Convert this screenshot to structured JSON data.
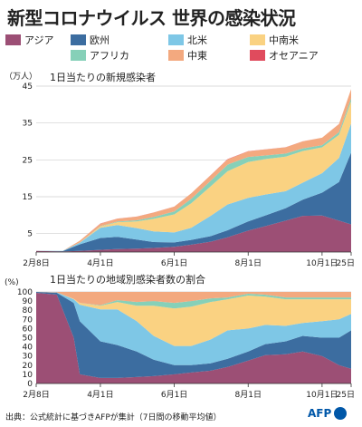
{
  "title": "新型コロナウイルス 世界の感染状況",
  "legend": [
    {
      "label": "アジア",
      "color": "#9c4f75"
    },
    {
      "label": "欧州",
      "color": "#3c6da0"
    },
    {
      "label": "北米",
      "color": "#7ec7e6"
    },
    {
      "label": "中南米",
      "color": "#fad282"
    },
    {
      "label": "アフリカ",
      "color": "#86d0b8"
    },
    {
      "label": "中東",
      "color": "#f3a97f"
    },
    {
      "label": "オセアニア",
      "color": "#e04b5d"
    }
  ],
  "footer": "出典：公式統計に基づきAFPが集計（7日間の移動平均値）",
  "logo": "AFP",
  "chart_data": [
    {
      "type": "area",
      "title": "1日当たりの新規感染者",
      "ylabel": "（万人）",
      "ylim": [
        0,
        45
      ],
      "yticks": [
        "5",
        "15",
        "25",
        "35",
        "45"
      ],
      "xlabels": [
        "2月8日",
        "4月1日",
        "6月1日",
        "8月1日",
        "10月1日",
        "25日"
      ],
      "x": [
        "2/8",
        "3/1",
        "3/15",
        "4/1",
        "4/15",
        "5/1",
        "5/15",
        "6/1",
        "6/15",
        "7/1",
        "7/15",
        "8/1",
        "8/15",
        "9/1",
        "9/15",
        "10/1",
        "10/15",
        "10/25"
      ],
      "series": [
        {
          "name": "アジア",
          "values": [
            0.3,
            0.15,
            0.3,
            0.6,
            0.8,
            0.9,
            1.1,
            1.4,
            2.0,
            2.8,
            4.0,
            5.8,
            7.0,
            8.5,
            9.8,
            9.9,
            8.5,
            7.5
          ]
        },
        {
          "name": "欧州",
          "values": [
            0,
            0.1,
            1.8,
            3.2,
            3.3,
            2.5,
            1.6,
            1.2,
            1.3,
            1.5,
            1.9,
            2.5,
            2.9,
            3.4,
            4.4,
            6.2,
            10.5,
            19.5
          ]
        },
        {
          "name": "北米",
          "values": [
            0,
            0.05,
            0.4,
            2.8,
            3.2,
            3.1,
            2.9,
            2.7,
            3.3,
            5.5,
            7.0,
            6.4,
            5.7,
            4.6,
            4.6,
            5.3,
            6.5,
            7.9
          ]
        },
        {
          "name": "中南米",
          "values": [
            0,
            0,
            0.05,
            0.3,
            0.8,
            1.8,
            3.4,
            4.9,
            6.6,
            8.0,
            9.0,
            9.7,
            9.6,
            9.4,
            8.6,
            7.0,
            6.3,
            6.0
          ]
        },
        {
          "name": "アフリカ",
          "values": [
            0,
            0,
            0.02,
            0.1,
            0.15,
            0.3,
            0.5,
            0.8,
            1.2,
            1.5,
            1.8,
            1.4,
            1.0,
            0.8,
            0.7,
            0.6,
            0.7,
            0.8
          ]
        },
        {
          "name": "中東",
          "values": [
            0,
            0.01,
            0.5,
            0.7,
            0.8,
            1.0,
            1.2,
            1.3,
            1.5,
            1.5,
            1.4,
            1.5,
            1.6,
            1.7,
            1.9,
            2.0,
            2.2,
            2.5
          ]
        },
        {
          "name": "オセアニア",
          "values": [
            0,
            0,
            0.01,
            0.05,
            0.02,
            0.01,
            0.01,
            0.01,
            0.01,
            0.05,
            0.1,
            0.08,
            0.05,
            0.03,
            0.02,
            0.02,
            0.02,
            0.02
          ]
        }
      ]
    },
    {
      "type": "area",
      "title": "1日当たりの地域別感染者数の割合",
      "ylabel": "(%)",
      "ylim": [
        0,
        100
      ],
      "yticks": [
        "0",
        "10",
        "20",
        "30",
        "40",
        "50",
        "60",
        "70",
        "80",
        "90",
        "100"
      ],
      "xlabels": [
        "2月8日",
        "4月1日",
        "6月1日",
        "8月1日",
        "10月1日",
        "25日"
      ],
      "x": [
        "2/8",
        "2/25",
        "3/10",
        "3/15",
        "4/1",
        "4/15",
        "5/1",
        "5/15",
        "6/1",
        "6/15",
        "7/1",
        "7/15",
        "8/1",
        "8/15",
        "9/1",
        "9/15",
        "10/1",
        "10/15",
        "10/25"
      ],
      "series": [
        {
          "name": "アジア",
          "values": [
            99,
            97,
            50,
            10,
            6,
            6,
            7,
            8,
            10,
            12,
            14,
            18,
            25,
            31,
            32,
            35,
            30,
            20,
            16
          ]
        },
        {
          "name": "欧州",
          "values": [
            1,
            2,
            38,
            58,
            40,
            36,
            28,
            18,
            10,
            8,
            8,
            9,
            10,
            12,
            14,
            17,
            20,
            30,
            42
          ]
        },
        {
          "name": "北米",
          "values": [
            0,
            0.5,
            4,
            18,
            35,
            39,
            33,
            26,
            21,
            21,
            26,
            31,
            25,
            21,
            17,
            14,
            18,
            20,
            18
          ]
        },
        {
          "name": "中南米",
          "values": [
            0,
            0,
            0.5,
            2,
            4,
            8,
            17,
            33,
            41,
            43,
            41,
            34,
            36,
            31,
            29,
            26,
            24,
            22,
            16
          ]
        },
        {
          "name": "アフリカ",
          "values": [
            0,
            0,
            0,
            0,
            0.5,
            2,
            4,
            5,
            6,
            6,
            4,
            2,
            2,
            2,
            2,
            2,
            2,
            2,
            2
          ]
        },
        {
          "name": "中東",
          "values": [
            0,
            0.5,
            7.5,
            12,
            14.5,
            9,
            11,
            10,
            12,
            10,
            7,
            6,
            2,
            3,
            6,
            6,
            6,
            6,
            6
          ]
        },
        {
          "name": "オセアニア",
          "values": [
            0,
            0,
            0,
            0,
            0,
            0,
            0,
            0,
            0,
            0,
            0,
            0,
            0,
            0,
            0,
            0,
            0,
            0,
            0
          ]
        }
      ]
    }
  ]
}
